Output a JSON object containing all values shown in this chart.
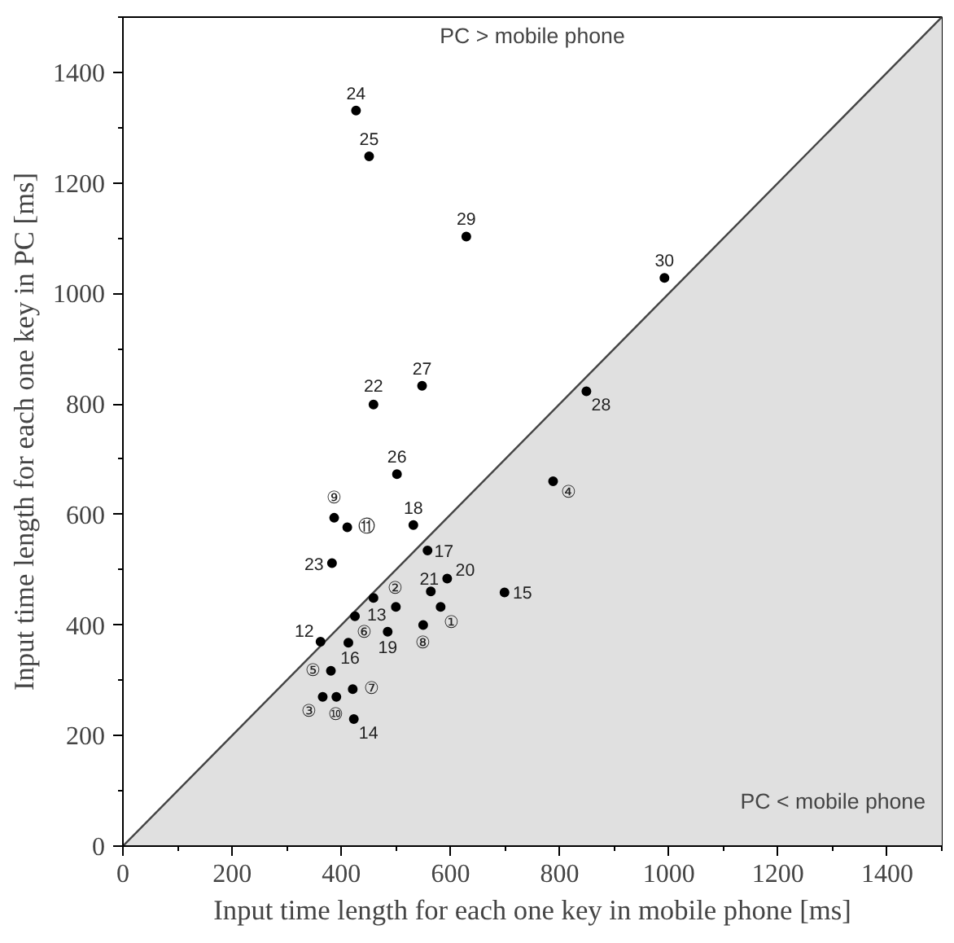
{
  "chart_data": {
    "type": "scatter",
    "xlabel": "Input time length for each one key in mobile phone [ms]",
    "ylabel": "Input time length for each one key in PC [ms]",
    "xlim": [
      0,
      1500
    ],
    "ylim": [
      0,
      1500
    ],
    "xticks": [
      0,
      200,
      400,
      600,
      800,
      1000,
      1200,
      1400
    ],
    "yticks": [
      0,
      200,
      400,
      600,
      800,
      1000,
      1200,
      1400
    ],
    "grid": false,
    "annotations": [
      "PC > mobile phone",
      "PC < mobile phone",
      {
        "text": "①",
        "x": 582,
        "y": 433
      },
      {
        "text": "②",
        "x": 500,
        "y": 433
      },
      {
        "text": "③",
        "x": 366,
        "y": 270
      },
      {
        "text": "④",
        "x": 788,
        "y": 660
      },
      {
        "text": "⑤",
        "x": 381,
        "y": 317
      },
      {
        "text": "⑥",
        "x": 425,
        "y": 416
      },
      {
        "text": "⑦",
        "x": 421,
        "y": 284
      },
      {
        "text": "⑧",
        "x": 550,
        "y": 400
      },
      {
        "text": "⑨",
        "x": 387,
        "y": 594
      },
      {
        "text": "⑩",
        "x": 391,
        "y": 270
      },
      {
        "text": "⑪",
        "x": 411,
        "y": 577
      },
      {
        "text": "12",
        "x": 362,
        "y": 370
      },
      {
        "text": "13",
        "x": 459,
        "y": 449
      },
      {
        "text": "14",
        "x": 423,
        "y": 230
      },
      {
        "text": "15",
        "x": 699,
        "y": 459
      },
      {
        "text": "16",
        "x": 413,
        "y": 368
      },
      {
        "text": "17",
        "x": 558,
        "y": 535
      },
      {
        "text": "18",
        "x": 532,
        "y": 581
      },
      {
        "text": "19",
        "x": 485,
        "y": 388
      },
      {
        "text": "20",
        "x": 594,
        "y": 484
      },
      {
        "text": "21",
        "x": 564,
        "y": 461
      },
      {
        "text": "22",
        "x": 459,
        "y": 799
      },
      {
        "text": "23",
        "x": 383,
        "y": 512
      },
      {
        "text": "24",
        "x": 427,
        "y": 1331
      },
      {
        "text": "25",
        "x": 451,
        "y": 1248
      },
      {
        "text": "26",
        "x": 502,
        "y": 673
      },
      {
        "text": "27",
        "x": 548,
        "y": 833
      },
      {
        "text": "28",
        "x": 849,
        "y": 823
      },
      {
        "text": "29",
        "x": 629,
        "y": 1103
      },
      {
        "text": "30",
        "x": 992,
        "y": 1028
      }
    ],
    "series": [
      {
        "type": "area",
        "color": "#e0e0e0",
        "x": [
          0,
          1500
        ],
        "values": [
          0,
          1500
        ]
      },
      {
        "color": "#000000",
        "marker": "circle",
        "x": [
          582,
          500,
          366,
          788,
          381,
          425,
          421,
          550,
          387,
          391,
          411,
          362,
          459,
          423,
          699,
          413,
          558,
          532,
          485,
          594,
          564,
          459,
          383,
          427,
          451,
          502,
          548,
          849,
          629,
          992
        ],
        "values": [
          433,
          433,
          270,
          660,
          317,
          416,
          284,
          400,
          594,
          270,
          577,
          370,
          449,
          230,
          459,
          368,
          535,
          581,
          388,
          484,
          461,
          799,
          512,
          1331,
          1248,
          673,
          833,
          823,
          1103,
          1028
        ]
      }
    ]
  }
}
